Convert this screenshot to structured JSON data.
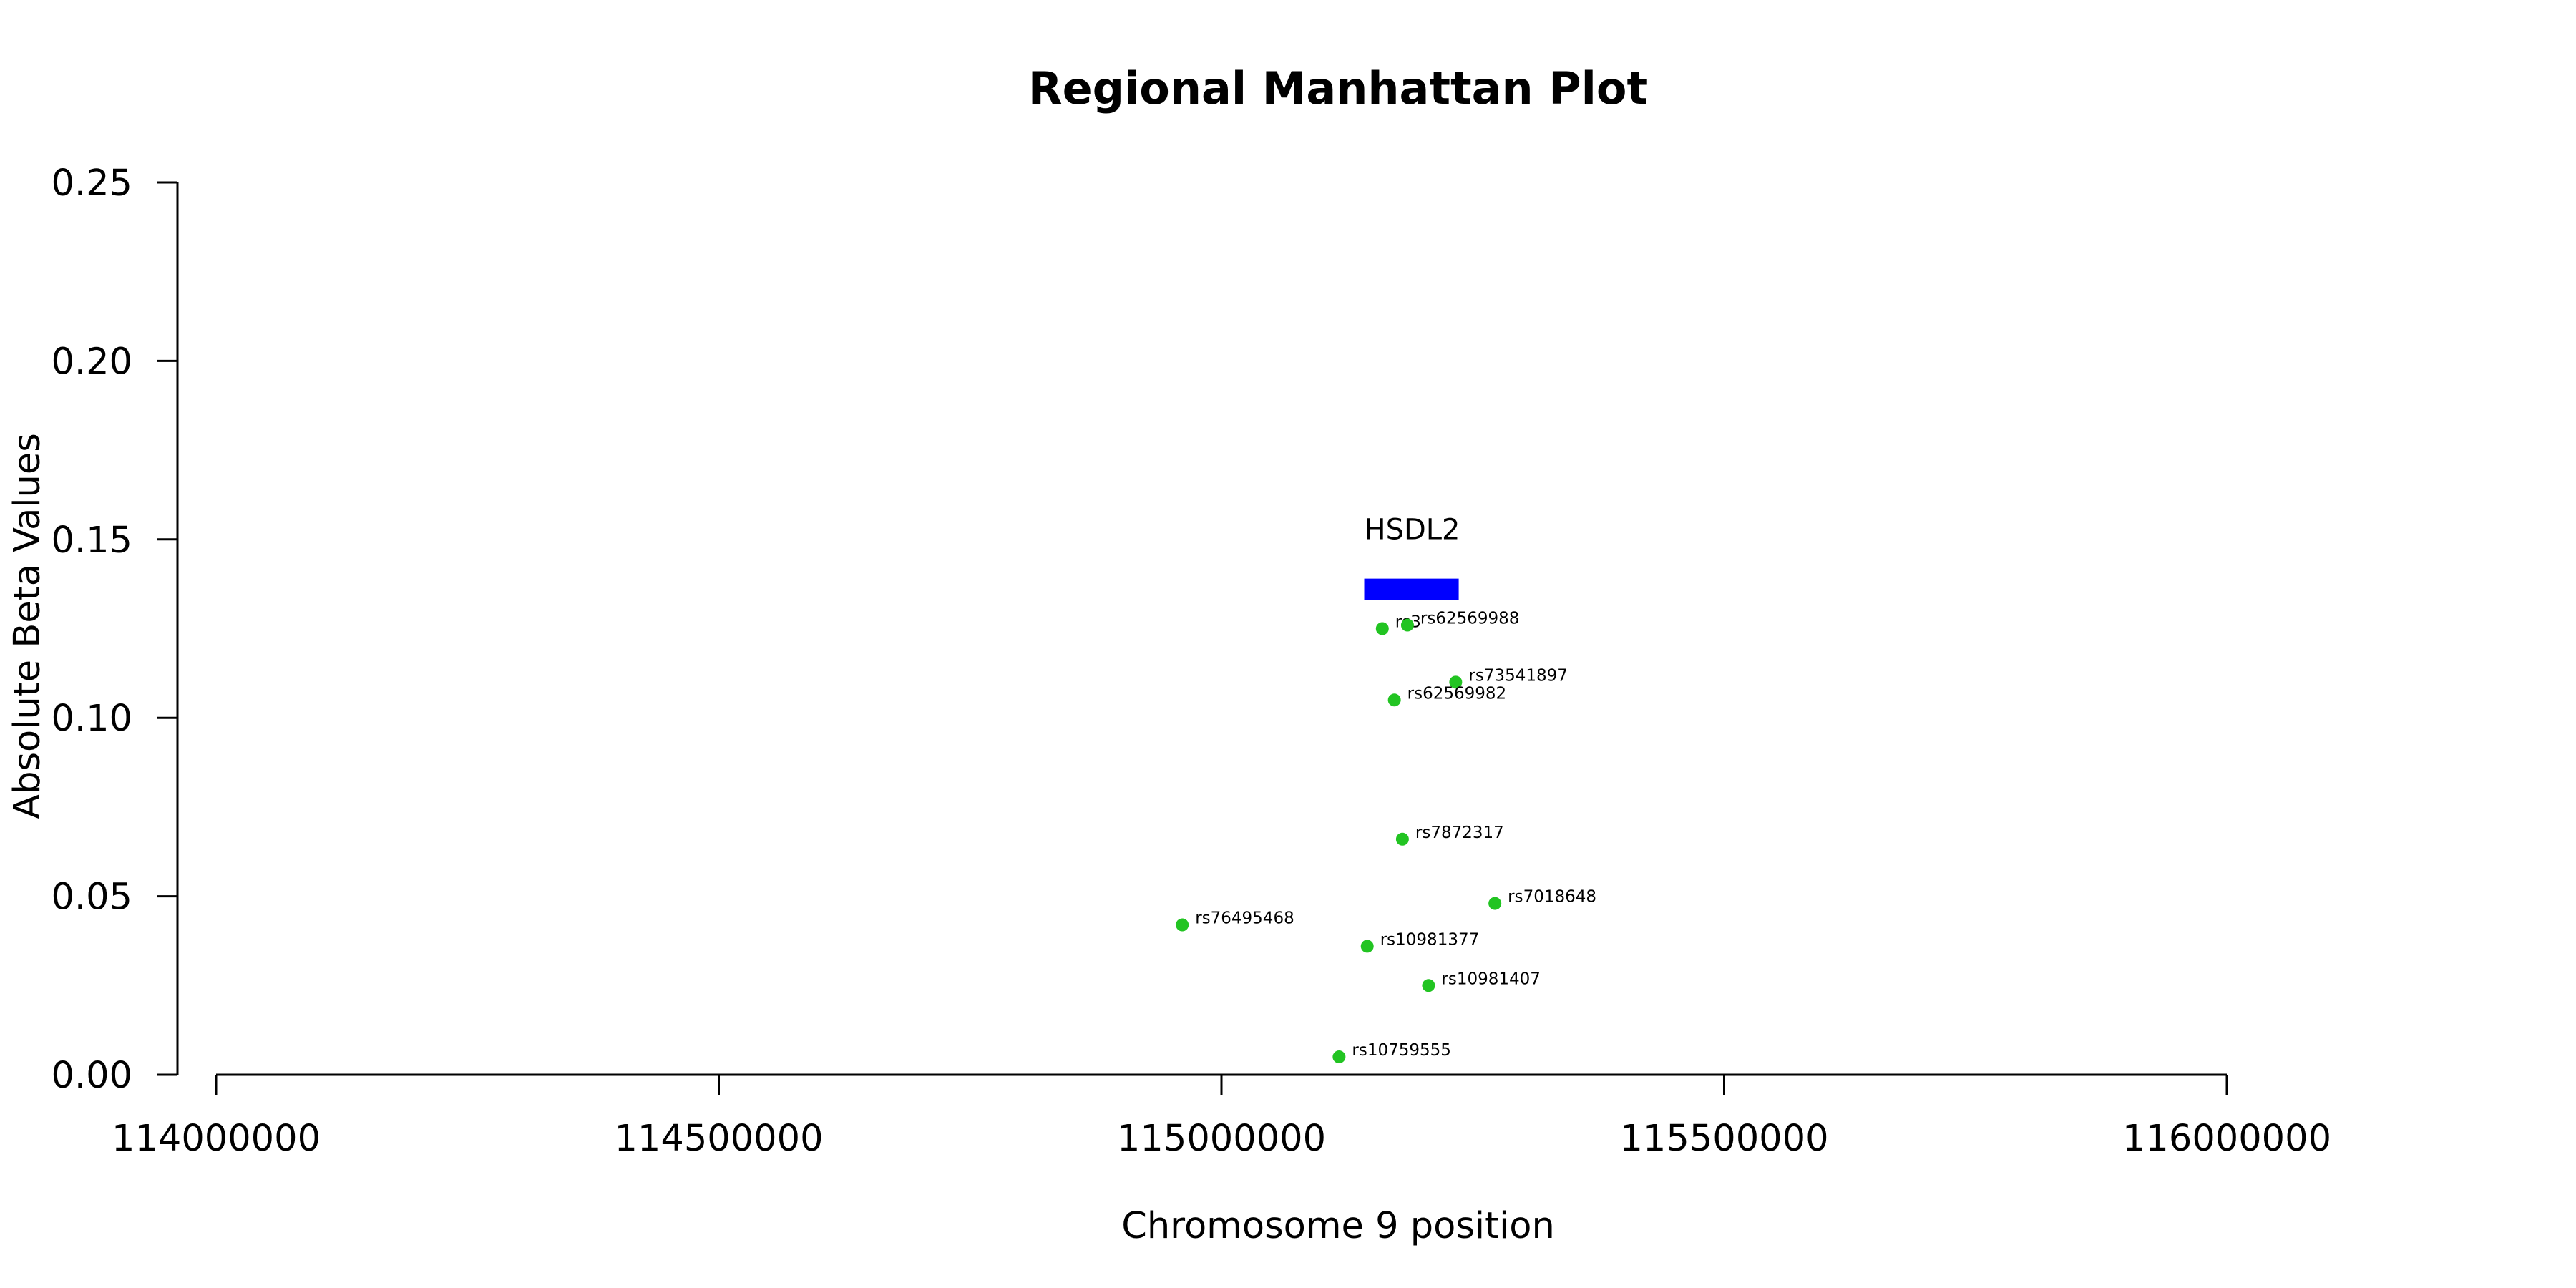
{
  "chart_data": {
    "type": "scatter",
    "title": "Regional Manhattan Plot",
    "xlabel": "Chromosome 9 position",
    "ylabel": "Absolute Beta Values",
    "xlim": [
      114000000,
      116000000
    ],
    "ylim": [
      0,
      0.25
    ],
    "x_ticks": [
      "114000000",
      "114500000",
      "115000000",
      "115500000",
      "116000000"
    ],
    "y_ticks": [
      "0.00",
      "0.05",
      "0.10",
      "0.15",
      "0.20",
      "0.25"
    ],
    "x_tick_values": [
      114000000,
      114500000,
      115000000,
      115500000,
      116000000
    ],
    "y_tick_values": [
      0,
      0.05,
      0.1,
      0.15,
      0.2,
      0.25
    ],
    "point_color": "#22c422",
    "points": [
      {
        "label": "rs3",
        "x": 115160000,
        "y": 0.125
      },
      {
        "label": "rs62569988",
        "x": 115185000,
        "y": 0.126
      },
      {
        "label": "rs73541897",
        "x": 115233000,
        "y": 0.11
      },
      {
        "label": "rs62569982",
        "x": 115172000,
        "y": 0.105
      },
      {
        "label": "rs7872317",
        "x": 115180000,
        "y": 0.066
      },
      {
        "label": "rs7018648",
        "x": 115272000,
        "y": 0.048
      },
      {
        "label": "rs76495468",
        "x": 114961000,
        "y": 0.042
      },
      {
        "label": "rs10981377",
        "x": 115145000,
        "y": 0.036
      },
      {
        "label": "rs10981407",
        "x": 115206000,
        "y": 0.025
      },
      {
        "label": "rs10759555",
        "x": 115117000,
        "y": 0.005
      }
    ],
    "genes": [
      {
        "name": "HSDL2",
        "start": 115142000,
        "end": 115236000,
        "y": 0.136,
        "color": "#0000ff"
      }
    ]
  }
}
